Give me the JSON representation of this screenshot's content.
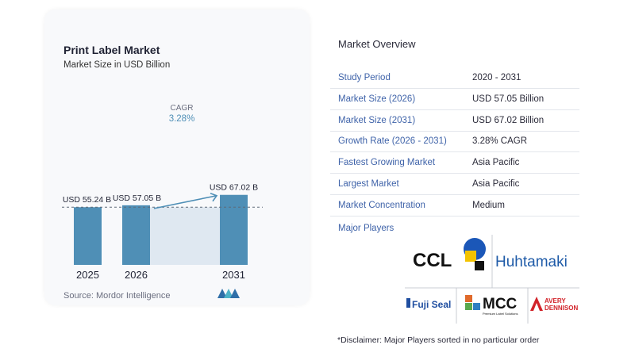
{
  "chart": {
    "title": "Print Label Market",
    "subtitle": "Market Size in USD Billion",
    "source": "Source:  Mordor Intelligence",
    "cagr_label": "CAGR",
    "cagr_value": "3.28%"
  },
  "chart_data": {
    "type": "bar",
    "title": "Print Label Market",
    "subtitle": "Market Size in USD Billion",
    "categories": [
      "2025",
      "2026",
      "2031"
    ],
    "values": [
      55.24,
      57.05,
      67.02
    ],
    "value_labels": [
      "USD 55.24 B",
      "USD 57.05 B",
      "USD 67.02 B"
    ],
    "unit": "USD Billion",
    "annotation": {
      "label": "CAGR",
      "value": "3.28%",
      "from": "2026",
      "to": "2031"
    },
    "reference_line": {
      "value": 55.24,
      "style": "dashed"
    },
    "ylim": [
      0,
      70
    ],
    "bar_color": "#4f8fb6",
    "grid": false,
    "legend": "none"
  },
  "overview": {
    "title": "Market Overview",
    "rows": [
      {
        "label": "Study Period",
        "value": "2020 - 2031"
      },
      {
        "label": "Market Size (2026)",
        "value": "USD 57.05 Billion"
      },
      {
        "label": "Market Size (2031)",
        "value": "USD 67.02 Billion"
      },
      {
        "label": "Growth Rate (2026 - 2031)",
        "value": "3.28% CAGR"
      },
      {
        "label": "Fastest Growing Market",
        "value": "Asia Pacific"
      },
      {
        "label": "Largest Market",
        "value": "Asia Pacific"
      },
      {
        "label": "Market Concentration",
        "value": "Medium"
      }
    ],
    "players_title": "Major Players",
    "players": [
      "CCL",
      "Huhtamaki",
      "Fuji Seal",
      "MCC",
      "Avery Dennison"
    ],
    "player_logo_texts": {
      "ccl": "CCL",
      "huhtamaki": "Huhtamaki",
      "fuji": "Fuji Seal",
      "mcc": "MCC",
      "mcc_sub": "Premium Label Solutions",
      "avery_1": "AVERY",
      "avery_2": "DENNISON"
    },
    "disclaimer": "*Disclaimer: Major Players sorted in no particular order"
  },
  "colors": {
    "accent": "#3f63a9",
    "bar": "#4f8fb6",
    "highlight_area": "#dfe8f1"
  }
}
